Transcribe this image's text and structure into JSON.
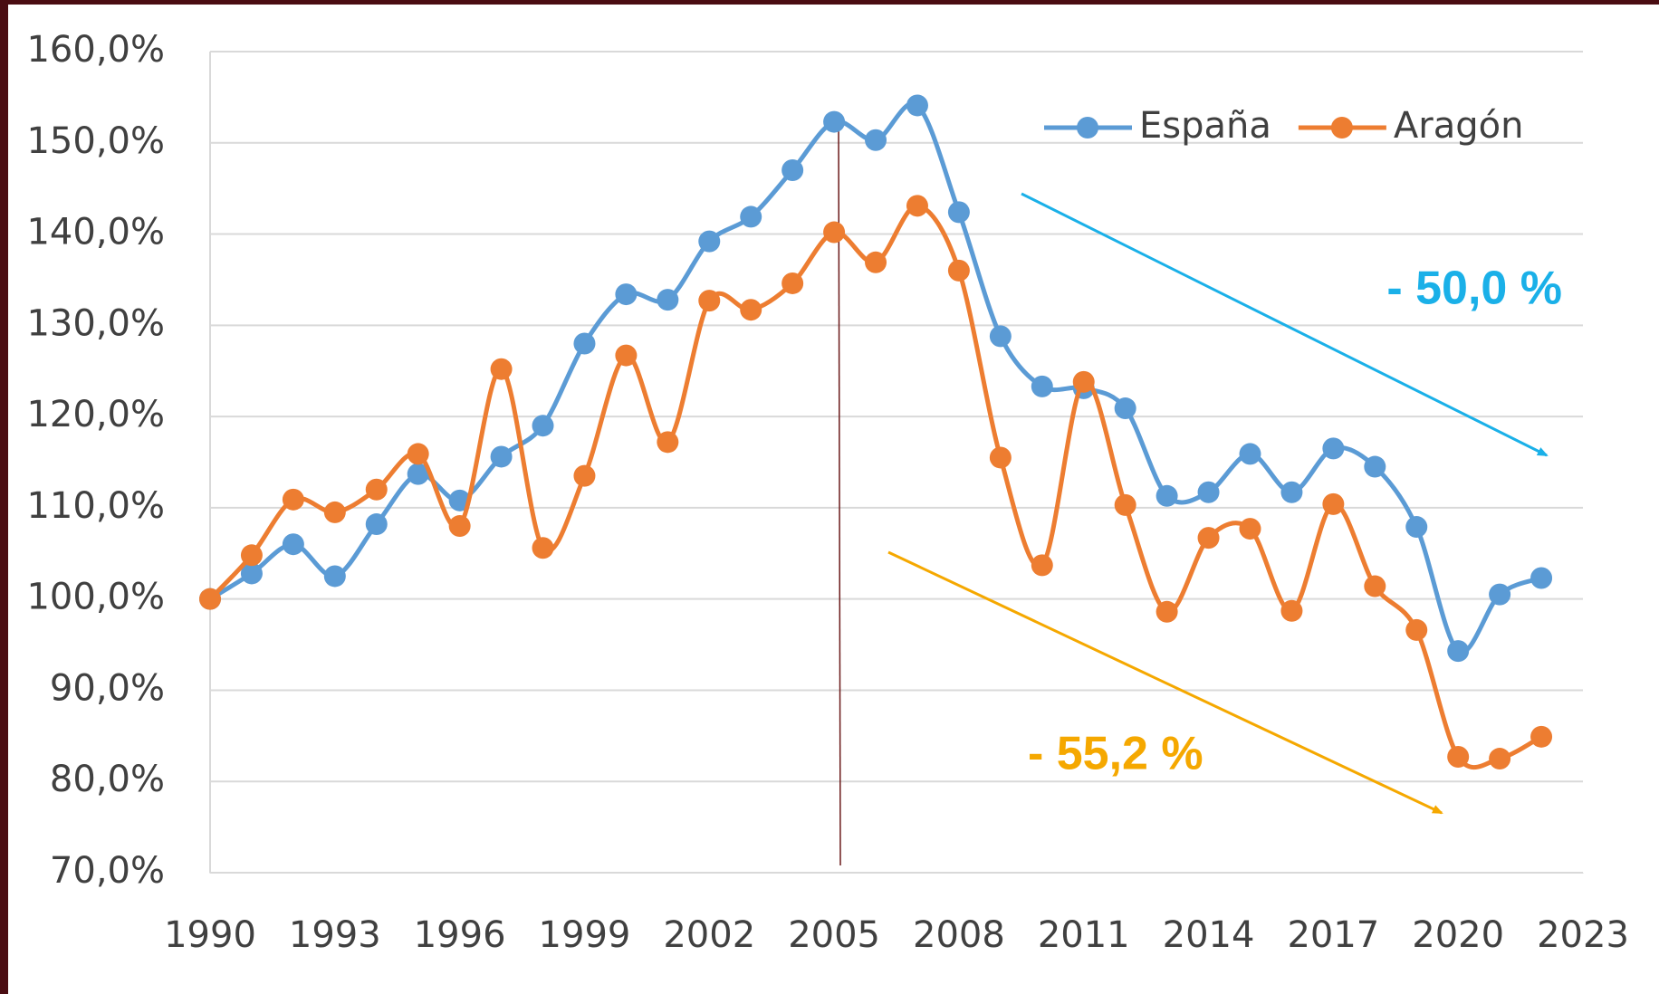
{
  "chart_data": {
    "type": "line",
    "x": [
      1990,
      1991,
      1992,
      1993,
      1994,
      1995,
      1996,
      1997,
      1998,
      1999,
      2000,
      2001,
      2002,
      2003,
      2004,
      2005,
      2006,
      2007,
      2008,
      2009,
      2010,
      2011,
      2012,
      2013,
      2014,
      2015,
      2016,
      2017,
      2018,
      2019,
      2020,
      2021,
      2022
    ],
    "series": [
      {
        "name": "España",
        "color": "#5b9bd5",
        "values": [
          100,
          102.8,
          106,
          102.5,
          108.2,
          113.7,
          110.8,
          115.6,
          119,
          128,
          133.4,
          132.8,
          139.2,
          141.9,
          147,
          152.3,
          150.3,
          154.1,
          142.4,
          128.8,
          123.3,
          123.1,
          120.9,
          111.3,
          111.7,
          115.9,
          111.7,
          116.5,
          114.5,
          107.9,
          94.3,
          100.5,
          102.3
        ]
      },
      {
        "name": "Aragón",
        "color": "#ed7d31",
        "values": [
          100,
          104.8,
          110.9,
          109.5,
          112,
          115.9,
          108,
          125.2,
          105.6,
          113.5,
          126.7,
          117.2,
          132.7,
          131.7,
          134.6,
          140.2,
          136.9,
          143.1,
          136,
          115.5,
          103.7,
          123.8,
          110.3,
          98.6,
          106.7,
          107.7,
          98.7,
          110.4,
          101.4,
          96.6,
          82.7,
          82.5,
          84.9
        ]
      }
    ],
    "xlim": [
      1990,
      2023
    ],
    "xticks": [
      1990,
      1993,
      1996,
      1999,
      2002,
      2005,
      2008,
      2011,
      2014,
      2017,
      2020,
      2023
    ],
    "ylim": [
      70,
      160
    ],
    "yticks": [
      {
        "value": 70,
        "label": "70,0%"
      },
      {
        "value": 80,
        "label": "80,0%"
      },
      {
        "value": 90,
        "label": "90,0%"
      },
      {
        "value": 100,
        "label": "100,0%"
      },
      {
        "value": 110,
        "label": "110,0%"
      },
      {
        "value": 120,
        "label": "120,0%"
      },
      {
        "value": 130,
        "label": "130,0%"
      },
      {
        "value": 140,
        "label": "140,0%"
      },
      {
        "value": 150,
        "label": "150,0%"
      },
      {
        "value": 160,
        "label": "160,0%"
      }
    ],
    "grid": true,
    "legend": "upper right",
    "annotations": [
      {
        "text": "- 50,0 %",
        "color": "#1ab0e8"
      },
      {
        "text": "- 55,2 %",
        "color": "#f5a800"
      }
    ]
  }
}
